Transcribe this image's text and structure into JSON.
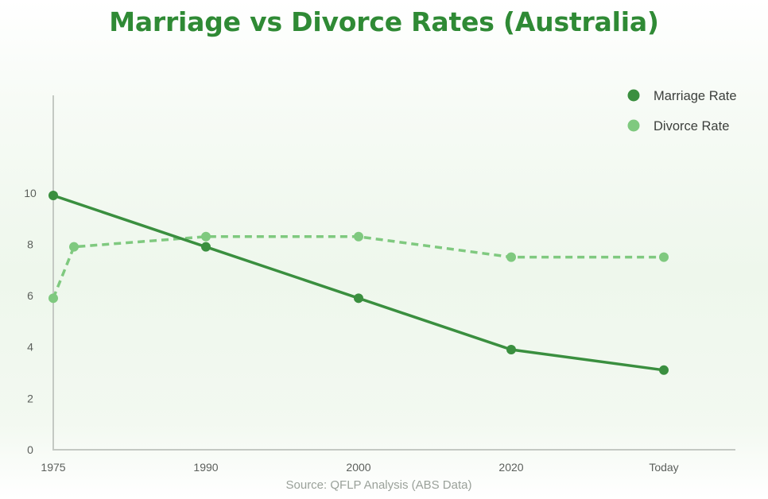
{
  "chart_data": {
    "type": "line",
    "title": "Marriage vs Divorce Rates (Australia)",
    "source": "Source: QFLP Analysis (ABS Data)",
    "xlabel": "",
    "ylabel": "",
    "x_tick_labels": [
      "1975",
      "1990",
      "2000",
      "2020",
      "Today"
    ],
    "y_ticks": [
      0,
      2,
      4,
      6,
      8,
      10
    ],
    "ylim": [
      0,
      13.8
    ],
    "grid": false,
    "legend_placement": "top-right",
    "series": [
      {
        "name": "Marriage Rate",
        "color": "#3a8f3f",
        "line_style": "solid",
        "points": [
          {
            "x": "1975",
            "y": 9.9
          },
          {
            "x": "1990",
            "y": 7.9
          },
          {
            "x": "2000",
            "y": 5.9
          },
          {
            "x": "2020",
            "y": 3.9
          },
          {
            "x": "Today",
            "y": 3.1
          }
        ]
      },
      {
        "name": "Divorce Rate",
        "color": "#7fc97f",
        "line_style": "dashed",
        "points": [
          {
            "x": "1975",
            "y": 5.9
          },
          {
            "x": "1976",
            "y": 7.9
          },
          {
            "x": "1990",
            "y": 8.3
          },
          {
            "x": "2000",
            "y": 8.3
          },
          {
            "x": "2020",
            "y": 7.5
          },
          {
            "x": "Today",
            "y": 7.5
          }
        ]
      }
    ]
  }
}
